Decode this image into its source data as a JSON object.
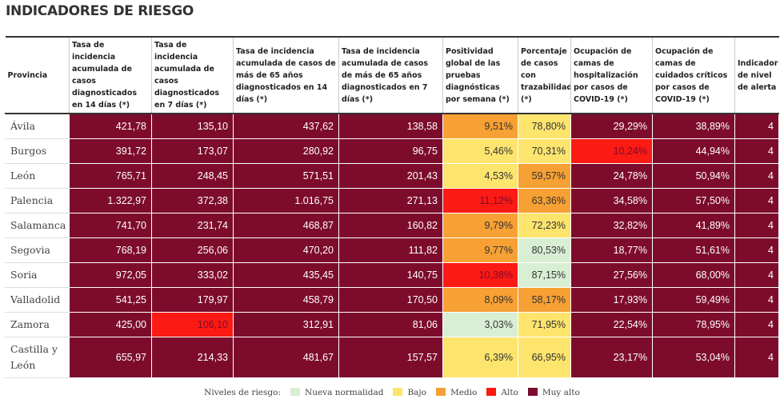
{
  "title": "INDICADORES DE RIESGO",
  "table": {
    "header": [
      "Provincia",
      "Tasa de incidencia acumulada de casos diagnosticados en 14 días (*)",
      "Tasa de incidencia acumulada de casos diagnosticados en 7 días (*)",
      "Tasa de incidencia acumulada de casos de más de 65 años diagnosticados en 14 días (*)",
      "Tasa de incidencia acumulada de casos de más de 65 años diagnosticados en 7 días (*)",
      "Positividad global de las pruebas diagnósticas por semana (*)",
      "Porcentaje de casos con trazabilidad (*)",
      "Ocupación de camas de hospitalización por casos de COVID-19 (*)",
      "Ocupación de camas de cuidados críticos por casos de COVID-19 (*)",
      "Indicador de nivel de alerta"
    ],
    "rows": [
      [
        "Ávila",
        "421,78",
        "135,10",
        "437,62",
        "138,58",
        "9,51%",
        "78,80%",
        "29,29%",
        "38,89%",
        "4"
      ],
      [
        "Burgos",
        "391,72",
        "173,07",
        "280,92",
        "96,75",
        "5,46%",
        "70,31%",
        "10,24%",
        "44,94%",
        "4"
      ],
      [
        "León",
        "765,71",
        "248,45",
        "571,51",
        "201,43",
        "4,53%",
        "59,57%",
        "24,78%",
        "50,94%",
        "4"
      ],
      [
        "Palencia",
        "1.322,97",
        "372,38",
        "1.016,75",
        "271,13",
        "11,12%",
        "63,36%",
        "34,58%",
        "57,50%",
        "4"
      ],
      [
        "Salamanca",
        "741,70",
        "231,74",
        "468,87",
        "160,82",
        "9,79%",
        "72,23%",
        "32,82%",
        "41,89%",
        "4"
      ],
      [
        "Segovia",
        "768,19",
        "256,06",
        "470,20",
        "111,82",
        "9,77%",
        "80,53%",
        "18,77%",
        "51,61%",
        "4"
      ],
      [
        "Soria",
        "972,05",
        "333,02",
        "435,45",
        "140,75",
        "10,38%",
        "87,15%",
        "27,56%",
        "68,00%",
        "4"
      ],
      [
        "Valladolid",
        "541,25",
        "179,97",
        "458,79",
        "170,50",
        "8,09%",
        "58,17%",
        "17,93%",
        "59,49%",
        "4"
      ],
      [
        "Zamora",
        "425,00",
        "106,10",
        "312,91",
        "81,06",
        "3,03%",
        "71,95%",
        "22,54%",
        "78,95%",
        "4"
      ],
      [
        "Castilla y León",
        "655,97",
        "214,33",
        "481,67",
        "157,57",
        "6,39%",
        "66,95%",
        "23,17%",
        "53,04%",
        "4"
      ]
    ],
    "cell_colors": [
      [
        "#7d0c2c",
        "#7d0c2c",
        "#7d0c2c",
        "#7d0c2c",
        "#f7a033",
        "#fde46d",
        "#7d0c2c",
        "#7d0c2c",
        "#7d0c2c"
      ],
      [
        "#7d0c2c",
        "#7d0c2c",
        "#7d0c2c",
        "#7d0c2c",
        "#fde46d",
        "#fde46d",
        "#fb1a14",
        "#7d0c2c",
        "#7d0c2c"
      ],
      [
        "#7d0c2c",
        "#7d0c2c",
        "#7d0c2c",
        "#7d0c2c",
        "#fde46d",
        "#f7a033",
        "#7d0c2c",
        "#7d0c2c",
        "#7d0c2c"
      ],
      [
        "#7d0c2c",
        "#7d0c2c",
        "#7d0c2c",
        "#7d0c2c",
        "#fb1a14",
        "#f7a033",
        "#7d0c2c",
        "#7d0c2c",
        "#7d0c2c"
      ],
      [
        "#7d0c2c",
        "#7d0c2c",
        "#7d0c2c",
        "#7d0c2c",
        "#f7a033",
        "#fde46d",
        "#7d0c2c",
        "#7d0c2c",
        "#7d0c2c"
      ],
      [
        "#7d0c2c",
        "#7d0c2c",
        "#7d0c2c",
        "#7d0c2c",
        "#f7a033",
        "#d9efd4",
        "#7d0c2c",
        "#7d0c2c",
        "#7d0c2c"
      ],
      [
        "#7d0c2c",
        "#7d0c2c",
        "#7d0c2c",
        "#7d0c2c",
        "#fb1a14",
        "#d9efd4",
        "#7d0c2c",
        "#7d0c2c",
        "#7d0c2c"
      ],
      [
        "#7d0c2c",
        "#7d0c2c",
        "#7d0c2c",
        "#7d0c2c",
        "#f7a033",
        "#f7a033",
        "#7d0c2c",
        "#7d0c2c",
        "#7d0c2c"
      ],
      [
        "#7d0c2c",
        "#fb1a14",
        "#7d0c2c",
        "#7d0c2c",
        "#d9efd4",
        "#fde46d",
        "#7d0c2c",
        "#7d0c2c",
        "#7d0c2c"
      ],
      [
        "#7d0c2c",
        "#7d0c2c",
        "#7d0c2c",
        "#7d0c2c",
        "#fde46d",
        "#fde46d",
        "#7d0c2c",
        "#7d0c2c",
        "#7d0c2c"
      ]
    ]
  },
  "legend": {
    "title": "Niveles de riesgo:",
    "items": [
      {
        "label": "Nueva normalidad",
        "color": "#d9efd4"
      },
      {
        "label": "Bajo",
        "color": "#fde46d"
      },
      {
        "label": "Medio",
        "color": "#f7a033"
      },
      {
        "label": "Alto",
        "color": "#fb1a14"
      },
      {
        "label": "Muy alto",
        "color": "#7d0c2c"
      }
    ]
  }
}
